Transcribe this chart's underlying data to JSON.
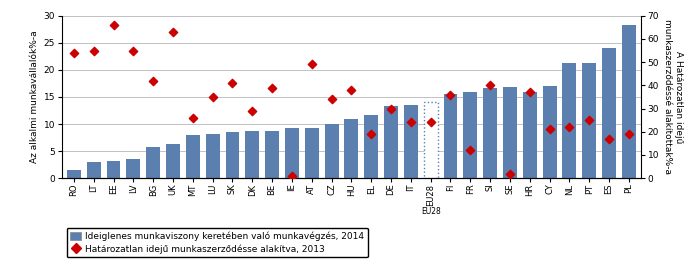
{
  "categories": [
    "RO",
    "LT",
    "EE",
    "LV",
    "BG",
    "UK",
    "MT",
    "LU",
    "SK",
    "DK",
    "BE",
    "IE",
    "AT",
    "CZ",
    "HU",
    "EL",
    "DE",
    "IT",
    "EU28",
    "FI",
    "FR",
    "SI",
    "SE",
    "HR",
    "CY",
    "NL",
    "PT",
    "ES",
    "PL"
  ],
  "bar_values": [
    1.5,
    2.9,
    3.2,
    3.5,
    5.7,
    6.4,
    7.9,
    8.1,
    8.5,
    8.7,
    8.7,
    9.3,
    9.3,
    10.0,
    10.9,
    11.7,
    13.3,
    13.5,
    14.0,
    15.6,
    15.9,
    16.7,
    16.8,
    15.9,
    17.0,
    21.3,
    21.3,
    24.1,
    28.2
  ],
  "diamond_values": [
    54,
    55,
    66,
    55,
    42,
    63,
    26,
    35,
    41,
    29,
    39,
    1,
    49,
    34,
    38,
    19,
    30,
    24,
    24,
    36,
    12,
    40,
    2,
    37,
    21,
    22,
    25,
    17,
    19
  ],
  "bar_color": "#5B7FAF",
  "diamond_color": "#CC0000",
  "eu28_index": 18,
  "left_ylabel": "Az alkalmi munkavállalók%-a",
  "right_ylabel": "A Határozatlan idejű\nmunkaszerződéssé alakítottak%-a",
  "left_ylim": [
    0,
    30
  ],
  "right_ylim": [
    0,
    70
  ],
  "left_yticks": [
    0,
    5,
    10,
    15,
    20,
    25,
    30
  ],
  "right_yticks": [
    0,
    10,
    20,
    30,
    40,
    50,
    60,
    70
  ],
  "legend_bar_label": "Ideiglenes munkaviszony keretében való munkavégzés, 2014",
  "legend_diamond_label": "Határozatlan idejű munkaszerződésse alakítva, 2013",
  "background_color": "#FFFFFF",
  "grid_color": "#AAAAAA"
}
